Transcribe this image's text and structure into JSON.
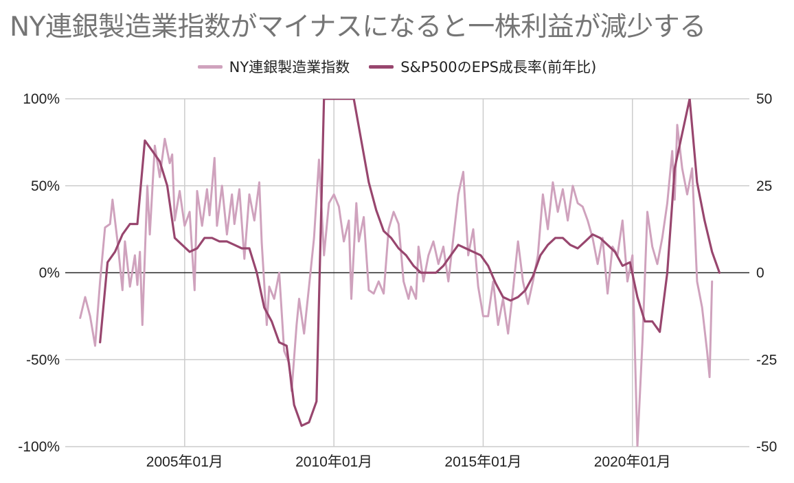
{
  "title": "NY連銀製造業指数がマイナスになると一株利益が減少する",
  "colors": {
    "ny_index": "#cfa2bd",
    "eps": "#98466e",
    "grid": "#cccccc",
    "zero": "#222222"
  },
  "chart_data": {
    "type": "line",
    "title": "NY連銀製造業指数がマイナスになると一株利益が減少する",
    "legend_position": "top",
    "grid": true,
    "x_range": [
      "2001-01",
      "2023-12"
    ],
    "x_ticks": [
      "2005-01",
      "2010-01",
      "2015-01",
      "2020-01"
    ],
    "x_tick_labels": [
      "2005年01月",
      "2010年01月",
      "2015年01月",
      "2020年01月"
    ],
    "y_left": {
      "range": [
        -100,
        100
      ],
      "ticks": [
        -100,
        -50,
        0,
        50,
        100
      ],
      "tick_labels": [
        "-100%",
        "-50%",
        "0%",
        "50%",
        "100%"
      ]
    },
    "y_right": {
      "range": [
        -50,
        50
      ],
      "ticks": [
        -50,
        -25,
        0,
        25,
        50
      ],
      "tick_labels": [
        "-50",
        "-25",
        "0",
        "25",
        "50"
      ]
    },
    "series": [
      {
        "name": "NY連銀製造業指数",
        "axis": "left",
        "points": [
          [
            "2001-07",
            -26
          ],
          [
            "2001-09",
            -14
          ],
          [
            "2001-11",
            -25
          ],
          [
            "2002-01",
            -42
          ],
          [
            "2002-03",
            -5
          ],
          [
            "2002-05",
            26
          ],
          [
            "2002-07",
            28
          ],
          [
            "2002-08",
            42
          ],
          [
            "2002-10",
            18
          ],
          [
            "2002-12",
            -10
          ],
          [
            "2003-01",
            18
          ],
          [
            "2003-03",
            -8
          ],
          [
            "2003-05",
            10
          ],
          [
            "2003-06",
            -7
          ],
          [
            "2003-07",
            12
          ],
          [
            "2003-08",
            -30
          ],
          [
            "2003-10",
            50
          ],
          [
            "2003-11",
            22
          ],
          [
            "2004-01",
            73
          ],
          [
            "2004-03",
            55
          ],
          [
            "2004-05",
            77
          ],
          [
            "2004-07",
            63
          ],
          [
            "2004-08",
            68
          ],
          [
            "2004-09",
            30
          ],
          [
            "2004-11",
            47
          ],
          [
            "2005-01",
            27
          ],
          [
            "2005-03",
            35
          ],
          [
            "2005-05",
            -10
          ],
          [
            "2005-06",
            47
          ],
          [
            "2005-08",
            27
          ],
          [
            "2005-10",
            48
          ],
          [
            "2005-11",
            33
          ],
          [
            "2006-01",
            66
          ],
          [
            "2006-02",
            27
          ],
          [
            "2006-04",
            50
          ],
          [
            "2006-06",
            22
          ],
          [
            "2006-08",
            45
          ],
          [
            "2006-09",
            28
          ],
          [
            "2006-11",
            48
          ],
          [
            "2007-01",
            8
          ],
          [
            "2007-03",
            45
          ],
          [
            "2007-05",
            30
          ],
          [
            "2007-07",
            52
          ],
          [
            "2007-08",
            17
          ],
          [
            "2007-10",
            -30
          ],
          [
            "2007-11",
            -8
          ],
          [
            "2008-01",
            -15
          ],
          [
            "2008-03",
            0
          ],
          [
            "2008-05",
            -45
          ],
          [
            "2008-07",
            -52
          ],
          [
            "2008-08",
            -68
          ],
          [
            "2008-10",
            -30
          ],
          [
            "2008-11",
            -15
          ],
          [
            "2009-01",
            -35
          ],
          [
            "2009-03",
            -8
          ],
          [
            "2009-05",
            20
          ],
          [
            "2009-07",
            65
          ],
          [
            "2009-09",
            10
          ],
          [
            "2009-11",
            40
          ],
          [
            "2010-01",
            45
          ],
          [
            "2010-03",
            38
          ],
          [
            "2010-05",
            18
          ],
          [
            "2010-07",
            30
          ],
          [
            "2010-08",
            -15
          ],
          [
            "2010-10",
            40
          ],
          [
            "2010-11",
            18
          ],
          [
            "2011-01",
            32
          ],
          [
            "2011-03",
            -10
          ],
          [
            "2011-05",
            -12
          ],
          [
            "2011-07",
            -5
          ],
          [
            "2011-09",
            -12
          ],
          [
            "2011-11",
            25
          ],
          [
            "2012-01",
            35
          ],
          [
            "2012-03",
            28
          ],
          [
            "2012-05",
            -5
          ],
          [
            "2012-07",
            -15
          ],
          [
            "2012-08",
            -8
          ],
          [
            "2012-10",
            -15
          ],
          [
            "2012-11",
            15
          ],
          [
            "2013-01",
            -5
          ],
          [
            "2013-03",
            10
          ],
          [
            "2013-05",
            18
          ],
          [
            "2013-07",
            5
          ],
          [
            "2013-09",
            15
          ],
          [
            "2013-11",
            -5
          ],
          [
            "2014-01",
            20
          ],
          [
            "2014-03",
            45
          ],
          [
            "2014-05",
            58
          ],
          [
            "2014-07",
            10
          ],
          [
            "2014-09",
            25
          ],
          [
            "2014-11",
            -8
          ],
          [
            "2015-01",
            -25
          ],
          [
            "2015-03",
            -25
          ],
          [
            "2015-05",
            -5
          ],
          [
            "2015-07",
            -30
          ],
          [
            "2015-09",
            -15
          ],
          [
            "2015-11",
            -35
          ],
          [
            "2016-01",
            -10
          ],
          [
            "2016-03",
            18
          ],
          [
            "2016-05",
            -5
          ],
          [
            "2016-07",
            -18
          ],
          [
            "2016-09",
            -5
          ],
          [
            "2016-11",
            10
          ],
          [
            "2017-01",
            45
          ],
          [
            "2017-03",
            25
          ],
          [
            "2017-05",
            52
          ],
          [
            "2017-07",
            35
          ],
          [
            "2017-09",
            48
          ],
          [
            "2017-11",
            30
          ],
          [
            "2018-01",
            50
          ],
          [
            "2018-03",
            40
          ],
          [
            "2018-05",
            38
          ],
          [
            "2018-07",
            30
          ],
          [
            "2018-09",
            20
          ],
          [
            "2018-11",
            5
          ],
          [
            "2019-01",
            20
          ],
          [
            "2019-03",
            -12
          ],
          [
            "2019-05",
            15
          ],
          [
            "2019-07",
            10
          ],
          [
            "2019-09",
            30
          ],
          [
            "2019-11",
            -5
          ],
          [
            "2020-01",
            10
          ],
          [
            "2020-03",
            -100
          ],
          [
            "2020-05",
            -40
          ],
          [
            "2020-07",
            35
          ],
          [
            "2020-09",
            15
          ],
          [
            "2020-11",
            5
          ],
          [
            "2021-01",
            20
          ],
          [
            "2021-03",
            40
          ],
          [
            "2021-05",
            70
          ],
          [
            "2021-06",
            42
          ],
          [
            "2021-07",
            85
          ],
          [
            "2021-09",
            60
          ],
          [
            "2021-11",
            45
          ],
          [
            "2022-01",
            60
          ],
          [
            "2022-03",
            -5
          ],
          [
            "2022-05",
            -20
          ],
          [
            "2022-07",
            -45
          ],
          [
            "2022-08",
            -60
          ],
          [
            "2022-09",
            -5
          ]
        ]
      },
      {
        "name": "S&P500のEPS成長率(前年比)",
        "axis": "right",
        "points": [
          [
            "2002-03",
            -20
          ],
          [
            "2002-06",
            3
          ],
          [
            "2002-09",
            6
          ],
          [
            "2002-12",
            11
          ],
          [
            "2003-03",
            14
          ],
          [
            "2003-06",
            14
          ],
          [
            "2003-09",
            38
          ],
          [
            "2003-12",
            35
          ],
          [
            "2004-03",
            32
          ],
          [
            "2004-06",
            25
          ],
          [
            "2004-09",
            10
          ],
          [
            "2004-12",
            8
          ],
          [
            "2005-03",
            6
          ],
          [
            "2005-06",
            7
          ],
          [
            "2005-09",
            10
          ],
          [
            "2005-12",
            10
          ],
          [
            "2006-03",
            9
          ],
          [
            "2006-06",
            9
          ],
          [
            "2006-09",
            8
          ],
          [
            "2006-12",
            7
          ],
          [
            "2007-03",
            7
          ],
          [
            "2007-06",
            0
          ],
          [
            "2007-09",
            -10
          ],
          [
            "2007-12",
            -14
          ],
          [
            "2008-03",
            -20
          ],
          [
            "2008-06",
            -21
          ],
          [
            "2008-09",
            -38
          ],
          [
            "2008-12",
            -44
          ],
          [
            "2009-03",
            -43
          ],
          [
            "2009-06",
            -37
          ],
          [
            "2009-09",
            50
          ],
          [
            "2010-09",
            50
          ],
          [
            "2011-03",
            26
          ],
          [
            "2011-06",
            18
          ],
          [
            "2011-09",
            12
          ],
          [
            "2011-12",
            10
          ],
          [
            "2012-03",
            7
          ],
          [
            "2012-06",
            5
          ],
          [
            "2012-09",
            2
          ],
          [
            "2012-12",
            0
          ],
          [
            "2013-03",
            0
          ],
          [
            "2013-06",
            0
          ],
          [
            "2013-09",
            2
          ],
          [
            "2013-12",
            5
          ],
          [
            "2014-03",
            8
          ],
          [
            "2014-06",
            7
          ],
          [
            "2014-09",
            6
          ],
          [
            "2014-12",
            5
          ],
          [
            "2015-03",
            2
          ],
          [
            "2015-06",
            -3
          ],
          [
            "2015-09",
            -7
          ],
          [
            "2015-12",
            -8
          ],
          [
            "2016-03",
            -7
          ],
          [
            "2016-06",
            -5
          ],
          [
            "2016-09",
            -1
          ],
          [
            "2016-12",
            5
          ],
          [
            "2017-03",
            8
          ],
          [
            "2017-06",
            10
          ],
          [
            "2017-09",
            10
          ],
          [
            "2017-12",
            8
          ],
          [
            "2018-03",
            7
          ],
          [
            "2018-06",
            9
          ],
          [
            "2018-09",
            11
          ],
          [
            "2018-12",
            10
          ],
          [
            "2019-03",
            8
          ],
          [
            "2019-06",
            6
          ],
          [
            "2019-09",
            2
          ],
          [
            "2019-12",
            3
          ],
          [
            "2020-03",
            -7
          ],
          [
            "2020-06",
            -14
          ],
          [
            "2020-09",
            -14
          ],
          [
            "2020-12",
            -17
          ],
          [
            "2021-03",
            0
          ],
          [
            "2021-06",
            30
          ],
          [
            "2021-09",
            40
          ],
          [
            "2021-12",
            50
          ],
          [
            "2022-03",
            26
          ],
          [
            "2022-06",
            15
          ],
          [
            "2022-09",
            6
          ],
          [
            "2022-12",
            0
          ]
        ]
      }
    ]
  }
}
